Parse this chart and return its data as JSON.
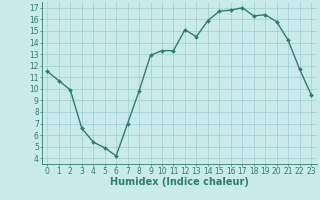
{
  "x": [
    0,
    1,
    2,
    3,
    4,
    5,
    6,
    7,
    8,
    9,
    10,
    11,
    12,
    13,
    14,
    15,
    16,
    17,
    18,
    19,
    20,
    21,
    22,
    23
  ],
  "y": [
    11.5,
    10.7,
    9.9,
    6.6,
    5.4,
    4.9,
    4.2,
    7.0,
    9.8,
    12.9,
    13.3,
    13.3,
    15.1,
    14.5,
    15.9,
    16.7,
    16.8,
    17.0,
    16.3,
    16.4,
    15.8,
    14.2,
    11.7,
    9.5
  ],
  "line_color": "#2e7d6e",
  "marker": "D",
  "markersize": 2.0,
  "linewidth": 1.0,
  "bg_color": "#c8eaea",
  "grid_color": "#a0cccc",
  "xlabel": "Humidex (Indice chaleur)",
  "xlabel_fontsize": 7,
  "tick_fontsize": 5.5,
  "xlim": [
    -0.5,
    23.5
  ],
  "ylim": [
    3.5,
    17.5
  ],
  "yticks": [
    4,
    5,
    6,
    7,
    8,
    9,
    10,
    11,
    12,
    13,
    14,
    15,
    16,
    17
  ],
  "xticks": [
    0,
    1,
    2,
    3,
    4,
    5,
    6,
    7,
    8,
    9,
    10,
    11,
    12,
    13,
    14,
    15,
    16,
    17,
    18,
    19,
    20,
    21,
    22,
    23
  ]
}
